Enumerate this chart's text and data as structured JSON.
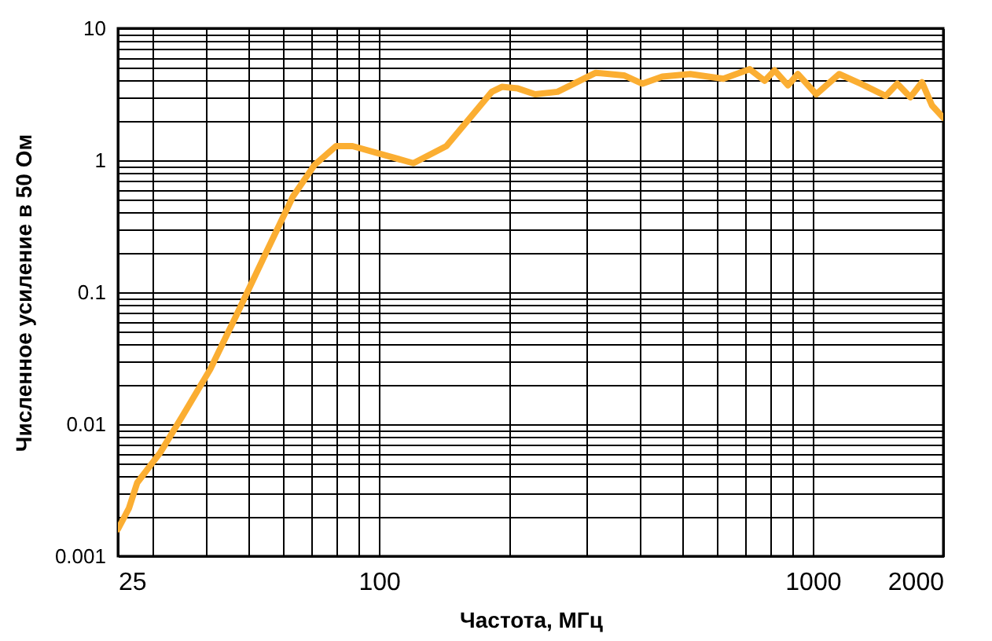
{
  "chart_data": {
    "type": "line",
    "xlabel": "Частота, МГц",
    "ylabel": "Численное усиление в 50 Ом",
    "log": "xy",
    "grid": true,
    "marker": "none",
    "line_style": "solid",
    "xlim": [
      25,
      2000
    ],
    "ylim": [
      0.001,
      10
    ],
    "xticks": [
      25,
      {
        "value": 30,
        "label": null
      },
      {
        "value": 40,
        "label": null
      },
      {
        "value": 50,
        "label": null
      },
      {
        "value": 60,
        "label": null
      },
      {
        "value": 70,
        "label": null
      },
      {
        "value": 80,
        "label": null
      },
      {
        "value": 90,
        "label": null
      },
      100,
      {
        "value": 200,
        "label": null
      },
      {
        "value": 300,
        "label": null
      },
      {
        "value": 400,
        "label": null
      },
      {
        "value": 500,
        "label": null
      },
      {
        "value": 600,
        "label": null
      },
      {
        "value": 700,
        "label": null
      },
      {
        "value": 800,
        "label": null
      },
      {
        "value": 900,
        "label": null
      },
      1000,
      2000
    ],
    "yticks": [
      0.001,
      {
        "value": 0.002,
        "label": null
      },
      {
        "value": 0.003,
        "label": null
      },
      {
        "value": 0.004,
        "label": null
      },
      {
        "value": 0.005,
        "label": null
      },
      {
        "value": 0.006,
        "label": null
      },
      {
        "value": 0.007,
        "label": null
      },
      {
        "value": 0.008,
        "label": null
      },
      {
        "value": 0.009,
        "label": null
      },
      0.01,
      {
        "value": 0.02,
        "label": null
      },
      {
        "value": 0.03,
        "label": null
      },
      {
        "value": 0.04,
        "label": null
      },
      {
        "value": 0.05,
        "label": null
      },
      {
        "value": 0.06,
        "label": null
      },
      {
        "value": 0.07,
        "label": null
      },
      {
        "value": 0.08,
        "label": null
      },
      {
        "value": 0.09,
        "label": null
      },
      0.1,
      {
        "value": 0.2,
        "label": null
      },
      {
        "value": 0.3,
        "label": null
      },
      {
        "value": 0.4,
        "label": null
      },
      {
        "value": 0.5,
        "label": null
      },
      {
        "value": 0.6,
        "label": null
      },
      {
        "value": 0.7,
        "label": null
      },
      {
        "value": 0.8,
        "label": null
      },
      {
        "value": 0.9,
        "label": null
      },
      1,
      {
        "value": 2,
        "label": null
      },
      {
        "value": 3,
        "label": null
      },
      {
        "value": 4,
        "label": null
      },
      {
        "value": 5,
        "label": null
      },
      {
        "value": 6,
        "label": null
      },
      {
        "value": 7,
        "label": null
      },
      {
        "value": 8,
        "label": null
      },
      {
        "value": 9,
        "label": null
      },
      10
    ],
    "x": [
      25,
      26.5,
      27.7,
      31.3,
      35.2,
      40.8,
      47,
      54.5,
      63.3,
      71,
      79.6,
      86.9,
      120,
      143,
      182,
      192,
      209,
      229,
      258,
      316,
      367,
      405,
      450,
      522,
      622,
      716,
      775,
      817,
      877,
      924,
      1019,
      1151,
      1291,
      1473,
      1567,
      1679,
      1786,
      1884,
      2000
    ],
    "series": [
      {
        "color": "#fbae32",
        "values": [
          0.0016,
          0.0023,
          0.0036,
          0.0061,
          0.0115,
          0.026,
          0.068,
          0.19,
          0.53,
          0.92,
          1.28,
          1.28,
          0.95,
          1.28,
          3.3,
          3.6,
          3.5,
          3.16,
          3.3,
          4.6,
          4.4,
          3.8,
          4.3,
          4.5,
          4.15,
          4.9,
          4.0,
          4.8,
          3.7,
          4.5,
          3.16,
          4.5,
          3.8,
          3.07,
          3.8,
          3.0,
          3.9,
          2.6,
          2.1
        ]
      }
    ]
  }
}
